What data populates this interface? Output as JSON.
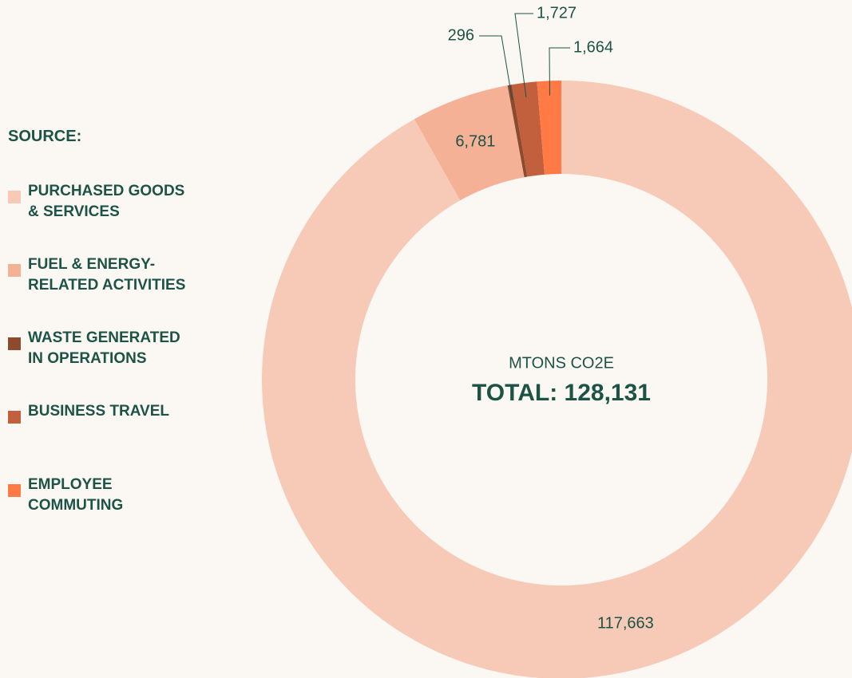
{
  "chart_data": {
    "type": "donut",
    "legend_title": "SOURCE:",
    "center_label": "MTONS CO2E",
    "total_label": "TOTAL: 128,131",
    "categories": [
      "PURCHASED GOODS & SERVICES",
      "FUEL & ENERGY-RELATED ACTIVITIES",
      "WASTE GENERATED IN OPERATIONS",
      "BUSINESS TRAVEL",
      "EMPLOYEE COMMUTING"
    ],
    "values": [
      117663,
      6781,
      296,
      1727,
      1664
    ],
    "value_labels": [
      "117,663",
      "6,781",
      "296",
      "1,727",
      "1,664"
    ],
    "colors": [
      "#f7c9b7",
      "#f4b195",
      "#8c4a2f",
      "#c2603e",
      "#ff7a45"
    ],
    "legend": "left"
  }
}
